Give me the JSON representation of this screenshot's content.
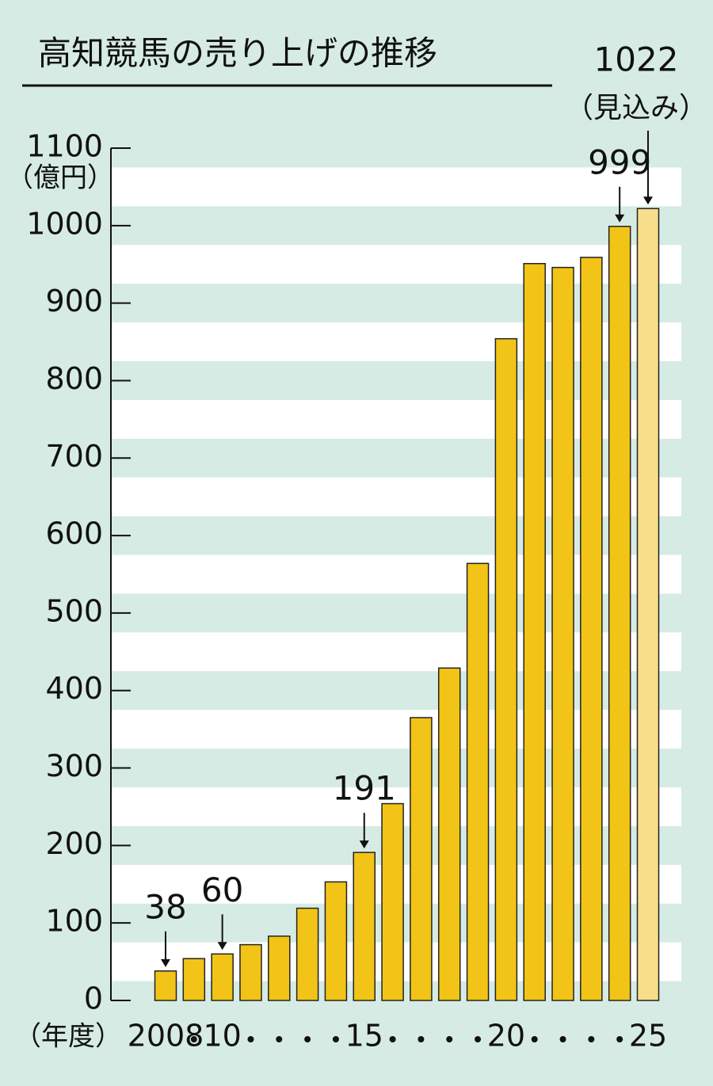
{
  "chart_data": {
    "type": "bar",
    "title": "高知競馬の売り上げの推移",
    "y_label": "（億円）",
    "x_label": "（年度）",
    "estimate_note": "（見込み）",
    "categories": [
      "2008",
      null,
      "10",
      null,
      null,
      null,
      null,
      "15",
      null,
      null,
      null,
      null,
      "20",
      null,
      null,
      null,
      null,
      "25"
    ],
    "series": [
      {
        "name": "売り上げ",
        "colors": [
          "#f2c417",
          "#f2c417",
          "#f2c417",
          "#f2c417",
          "#f2c417",
          "#f2c417",
          "#f2c417",
          "#f2c417",
          "#f2c417",
          "#f2c417",
          "#f2c417",
          "#f2c417",
          "#f2c417",
          "#f2c417",
          "#f2c417",
          "#f2c417",
          "#f2c417",
          "#f8de8a"
        ],
        "values": [
          38,
          54,
          60,
          72,
          83,
          119,
          153,
          191,
          254,
          365,
          429,
          564,
          854,
          951,
          946,
          959,
          999,
          1022
        ]
      }
    ],
    "ylim": [
      0,
      1100
    ],
    "yticks": [
      0,
      100,
      200,
      300,
      400,
      500,
      600,
      700,
      800,
      900,
      1000,
      1100
    ],
    "grid": true
  }
}
